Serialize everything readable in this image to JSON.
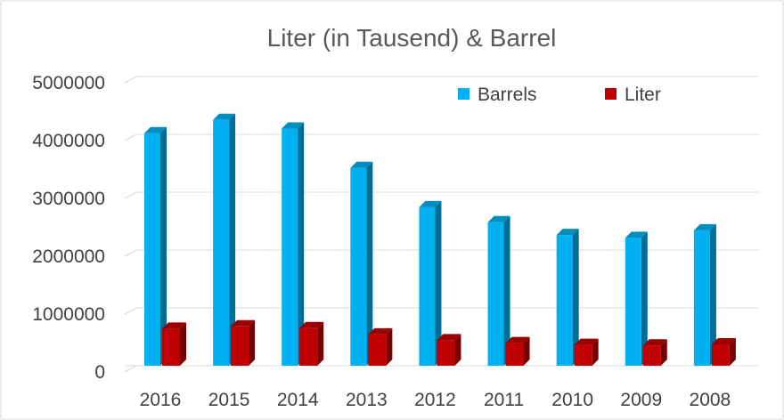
{
  "chart_data": {
    "type": "bar",
    "title": "Liter (in Tausend) & Barrel",
    "xlabel": "",
    "ylabel": "",
    "categories": [
      "2016",
      "2015",
      "2014",
      "2013",
      "2012",
      "2011",
      "2010",
      "2009",
      "2008"
    ],
    "series": [
      {
        "name": "Barrels",
        "color": "#00b0f0",
        "values": [
          4020000,
          4250000,
          4100000,
          3420000,
          2740000,
          2480000,
          2260000,
          2210000,
          2340000
        ]
      },
      {
        "name": "Liter",
        "color": "#c00000",
        "values": [
          640000,
          680000,
          650000,
          540000,
          440000,
          390000,
          360000,
          350000,
          370000
        ]
      }
    ],
    "ylim": [
      0,
      5000000
    ],
    "yticks": [
      "0",
      "1000000",
      "2000000",
      "3000000",
      "4000000",
      "5000000"
    ],
    "grid": true,
    "legend": "top-right",
    "style": "3d-column"
  }
}
